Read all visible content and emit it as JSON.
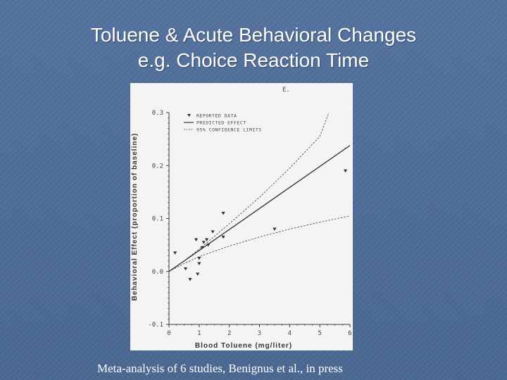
{
  "slide": {
    "title_line1": "Toluene & Acute Behavioral Changes",
    "title_line2": "e.g. Choice Reaction Time",
    "caption": "Meta-analysis of 6 studies, Benignus et al., in press"
  },
  "chart_data": {
    "type": "scatter",
    "panel_label": "E.",
    "xlabel": "Blood Toluene (mg/liter)",
    "ylabel": "Behavioral Effect (proportion of baseline)",
    "xlim": [
      0,
      6
    ],
    "ylim": [
      -0.1,
      0.3
    ],
    "x_ticks": [
      0,
      1,
      2,
      3,
      4,
      5,
      6
    ],
    "y_ticks": [
      -0.1,
      0.0,
      0.1,
      0.2,
      0.3
    ],
    "x_tick_labels": [
      "0",
      "1",
      "2",
      "3",
      "4",
      "5",
      "6"
    ],
    "y_tick_labels": [
      "-0.1",
      "0.0",
      "0.1",
      "0.2",
      "0.3"
    ],
    "grid": false,
    "legend_position": "top-left",
    "legend": [
      {
        "label": "REPORTED DATA",
        "style": "marker"
      },
      {
        "label": "PREDICTED EFFECT",
        "style": "solid"
      },
      {
        "label": "95% CONFIDENCE LIMITS",
        "style": "dashed"
      }
    ],
    "series": [
      {
        "name": "REPORTED DATA",
        "style": "marker",
        "points": [
          [
            0.2,
            0.035
          ],
          [
            0.55,
            0.005
          ],
          [
            0.7,
            -0.015
          ],
          [
            0.9,
            0.06
          ],
          [
            0.95,
            -0.005
          ],
          [
            1.0,
            0.015
          ],
          [
            1.0,
            0.025
          ],
          [
            1.1,
            0.045
          ],
          [
            1.15,
            0.055
          ],
          [
            1.25,
            0.06
          ],
          [
            1.3,
            0.05
          ],
          [
            1.45,
            0.075
          ],
          [
            1.8,
            0.065
          ],
          [
            1.8,
            0.11
          ],
          [
            3.5,
            0.08
          ],
          [
            5.85,
            0.19
          ]
        ]
      },
      {
        "name": "PREDICTED EFFECT",
        "style": "solid",
        "points": [
          [
            0,
            0
          ],
          [
            6,
            0.238
          ]
        ]
      },
      {
        "name": "95% CONFIDENCE LIMITS",
        "style": "dashed",
        "points": [
          [
            0,
            0
          ],
          [
            0.5,
            0.02
          ],
          [
            1,
            0.042
          ],
          [
            2,
            0.09
          ],
          [
            3,
            0.14
          ],
          [
            4,
            0.195
          ],
          [
            5,
            0.255
          ],
          [
            5.3,
            0.3
          ]
        ]
      },
      {
        "name": "95% CONFIDENCE LIMITS",
        "style": "dashed",
        "points": [
          [
            0,
            0
          ],
          [
            0.5,
            0.015
          ],
          [
            1,
            0.028
          ],
          [
            2,
            0.048
          ],
          [
            3,
            0.065
          ],
          [
            4,
            0.08
          ],
          [
            5,
            0.093
          ],
          [
            6,
            0.105
          ]
        ]
      }
    ]
  }
}
